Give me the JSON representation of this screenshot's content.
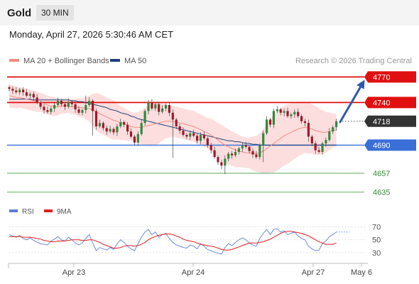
{
  "header": {
    "title": "Gold",
    "timeframe": "30 MIN"
  },
  "datetime": "Monday, April 27, 2026 5:30:46 AM CET",
  "legend": {
    "ma20_bb": {
      "label": "MA 20 + Bollinger Bands",
      "color": "#f28b82"
    },
    "ma50": {
      "label": "MA 50",
      "color": "#1f3f7a"
    }
  },
  "copyright": "Research © 2026 Trading Central",
  "rsi_legend": {
    "rsi": {
      "label": "RSI",
      "color": "#5b7fd6"
    },
    "ma9": {
      "label": "9MA",
      "color": "#e02020"
    }
  },
  "colors": {
    "up": "#2e8b3e",
    "down": "#a0182a",
    "resistance": "#e01010",
    "pivot": "#3a6fd8",
    "support": "#5aaa5a",
    "last": "#333333",
    "arrow": "#2f5aa8",
    "band": "#fcd3d3"
  },
  "chart_data": [
    {
      "type": "candlestick",
      "title": "Gold",
      "timeframe": "30 MIN",
      "ylim": [
        4627,
        4777
      ],
      "x_ticks": [
        "Apr 23",
        "Apr 24",
        "Apr 27",
        "May 6"
      ],
      "levels": [
        {
          "value": 4770,
          "label": "4770",
          "kind": "resistance"
        },
        {
          "value": 4740,
          "label": "4740",
          "kind": "resistance"
        },
        {
          "value": 4718,
          "label": "4718",
          "kind": "last"
        },
        {
          "value": 4690,
          "label": "4690",
          "kind": "pivot"
        },
        {
          "value": 4657,
          "label": "4657",
          "kind": "support"
        },
        {
          "value": 4635,
          "label": "4635",
          "kind": "support"
        }
      ],
      "projection": {
        "from": 4718,
        "to": 4770
      },
      "close": [
        4756,
        4754,
        4752,
        4755,
        4752,
        4748,
        4750,
        4746,
        4740,
        4735,
        4731,
        4729,
        4733,
        4737,
        4742,
        4738,
        4735,
        4741,
        4738,
        4732,
        4728,
        4731,
        4737,
        4742,
        4730,
        4712,
        4716,
        4710,
        4706,
        4709,
        4705,
        4712,
        4717,
        4714,
        4706,
        4700,
        4693,
        4703,
        4716,
        4730,
        4740,
        4733,
        4738,
        4729,
        4733,
        4737,
        4728,
        4720,
        4712,
        4707,
        4702,
        4700,
        4704,
        4701,
        4695,
        4702,
        4698,
        4690,
        4684,
        4676,
        4670,
        4666,
        4674,
        4680,
        4678,
        4682,
        4686,
        4690,
        4688,
        4683,
        4679,
        4676,
        4690,
        4704,
        4720,
        4714,
        4730,
        4732,
        4728,
        4730,
        4724,
        4726,
        4729,
        4724,
        4718,
        4716,
        4700,
        4692,
        4684,
        4682,
        4692,
        4696,
        4706,
        4711,
        4718
      ],
      "ma20": [
        4748,
        4747,
        4746,
        4746,
        4745,
        4744,
        4743,
        4742,
        4741,
        4740,
        4739,
        4737,
        4736,
        4735,
        4735,
        4736,
        4736,
        4736,
        4735,
        4735,
        4734,
        4734,
        4733,
        4733,
        4731,
        4729,
        4727,
        4725,
        4723,
        4721,
        4719,
        4718,
        4716,
        4715,
        4713,
        4712,
        4711,
        4711,
        4711,
        4712,
        4713,
        4714,
        4715,
        4716,
        4717,
        4718,
        4718,
        4718,
        4717,
        4716,
        4715,
        4714,
        4713,
        4712,
        4710,
        4708,
        4706,
        4704,
        4702,
        4699,
        4696,
        4693,
        4690,
        4688,
        4686,
        4684,
        4683,
        4682,
        4681,
        4681,
        4680,
        4680,
        4681,
        4683,
        4686,
        4689,
        4692,
        4695,
        4698,
        4701,
        4703,
        4705,
        4707,
        4709,
        4710,
        4711,
        4710,
        4709,
        4707,
        4706,
        4705,
        4705,
        4706,
        4707,
        4708
      ],
      "bb_upper": [
        4762,
        4760,
        4759,
        4758,
        4757,
        4756,
        4755,
        4754,
        4753,
        4751,
        4750,
        4748,
        4747,
        4746,
        4745,
        4745,
        4745,
        4744,
        4744,
        4744,
        4745,
        4745,
        4746,
        4748,
        4750,
        4751,
        4750,
        4748,
        4746,
        4744,
        4742,
        4739,
        4736,
        4734,
        4731,
        4729,
        4728,
        4729,
        4731,
        4734,
        4737,
        4739,
        4740,
        4740,
        4739,
        4738,
        4737,
        4736,
        4735,
        4734,
        4733,
        4732,
        4731,
        4730,
        4728,
        4726,
        4724,
        4722,
        4721,
        4719,
        4716,
        4714,
        4711,
        4709,
        4706,
        4704,
        4702,
        4700,
        4699,
        4699,
        4700,
        4701,
        4704,
        4709,
        4715,
        4720,
        4726,
        4730,
        4733,
        4736,
        4738,
        4739,
        4740,
        4741,
        4741,
        4741,
        4740,
        4738,
        4736,
        4733,
        4731,
        4729,
        4728,
        4727,
        4727
      ],
      "bb_lower": [
        4734,
        4734,
        4733,
        4734,
        4733,
        4732,
        4731,
        4730,
        4729,
        4729,
        4728,
        4726,
        4725,
        4724,
        4725,
        4727,
        4727,
        4728,
        4726,
        4726,
        4723,
        4723,
        4720,
        4718,
        4712,
        4707,
        4704,
        4702,
        4700,
        4698,
        4696,
        4697,
        4696,
        4696,
        4695,
        4695,
        4694,
        4693,
        4691,
        4690,
        4689,
        4689,
        4690,
        4692,
        4695,
        4698,
        4699,
        4700,
        4699,
        4698,
        4697,
        4696,
        4695,
        4694,
        4692,
        4690,
        4688,
        4686,
        4683,
        4679,
        4676,
        4672,
        4669,
        4667,
        4666,
        4664,
        4664,
        4664,
        4663,
        4663,
        4660,
        4659,
        4658,
        4657,
        4657,
        4658,
        4658,
        4660,
        4663,
        4666,
        4668,
        4671,
        4674,
        4677,
        4679,
        4681,
        4680,
        4680,
        4678,
        4679,
        4679,
        4681,
        4684,
        4687,
        4689
      ],
      "ma50": [
        4744,
        4744,
        4744,
        4744,
        4744,
        4744,
        4744,
        4743,
        4743,
        4743,
        4743,
        4743,
        4743,
        4743,
        4743,
        4743,
        4743,
        4743,
        4742,
        4742,
        4741,
        4741,
        4740,
        4739,
        4738,
        4737,
        4736,
        4735,
        4734,
        4732,
        4731,
        4730,
        4728,
        4727,
        4726,
        4724,
        4723,
        4721,
        4720,
        4719,
        4718,
        4717,
        4716,
        4715,
        4714,
        4713,
        4712,
        4711,
        4710,
        4709,
        4708,
        4707,
        4706,
        4705,
        4704,
        4703,
        4702,
        4701,
        4700,
        4699,
        4698,
        4697,
        4696,
        4695,
        4695,
        4694,
        4694,
        4693,
        4692,
        4692,
        4691,
        4691,
        4690,
        4690,
        4690,
        4690,
        4690,
        4690,
        4690,
        4690,
        4690,
        4690,
        4690,
        4690,
        4690,
        4690,
        4690,
        4690,
        4690,
        4690,
        4690,
        4690,
        4690,
        4690,
        4690
      ]
    },
    {
      "type": "line",
      "title": "RSI",
      "ylim": [
        20,
        75
      ],
      "y_ticks": [
        70,
        50,
        30
      ],
      "series": [
        {
          "name": "RSI",
          "values": [
            58,
            56,
            54,
            57,
            52,
            50,
            53,
            49,
            46,
            44,
            43,
            42,
            48,
            51,
            55,
            50,
            48,
            54,
            50,
            45,
            42,
            45,
            52,
            58,
            45,
            33,
            38,
            36,
            34,
            38,
            35,
            44,
            50,
            46,
            40,
            36,
            33,
            44,
            54,
            62,
            66,
            58,
            62,
            54,
            58,
            60,
            52,
            46,
            42,
            40,
            38,
            37,
            42,
            40,
            36,
            44,
            40,
            35,
            33,
            31,
            29,
            28,
            38,
            44,
            41,
            46,
            50,
            53,
            50,
            45,
            42,
            40,
            52,
            60,
            66,
            58,
            66,
            67,
            62,
            64,
            58,
            60,
            62,
            56,
            52,
            50,
            40,
            36,
            33,
            34,
            44,
            48,
            55,
            58,
            62
          ]
        },
        {
          "name": "9MA",
          "values": [
            55,
            55,
            55,
            55,
            54,
            54,
            54,
            53,
            52,
            51,
            49,
            48,
            47,
            47,
            48,
            48,
            48,
            49,
            50,
            50,
            50,
            49,
            49,
            50,
            50,
            48,
            46,
            43,
            41,
            39,
            37,
            37,
            38,
            40,
            41,
            41,
            40,
            41,
            43,
            46,
            50,
            53,
            55,
            57,
            58,
            59,
            59,
            58,
            56,
            54,
            51,
            49,
            48,
            47,
            45,
            43,
            42,
            41,
            40,
            39,
            37,
            35,
            34,
            34,
            35,
            37,
            39,
            41,
            43,
            45,
            45,
            45,
            46,
            47,
            49,
            51,
            54,
            57,
            60,
            62,
            63,
            63,
            62,
            61,
            60,
            58,
            56,
            53,
            50,
            47,
            45,
            43,
            43,
            43,
            45
          ]
        }
      ]
    }
  ]
}
